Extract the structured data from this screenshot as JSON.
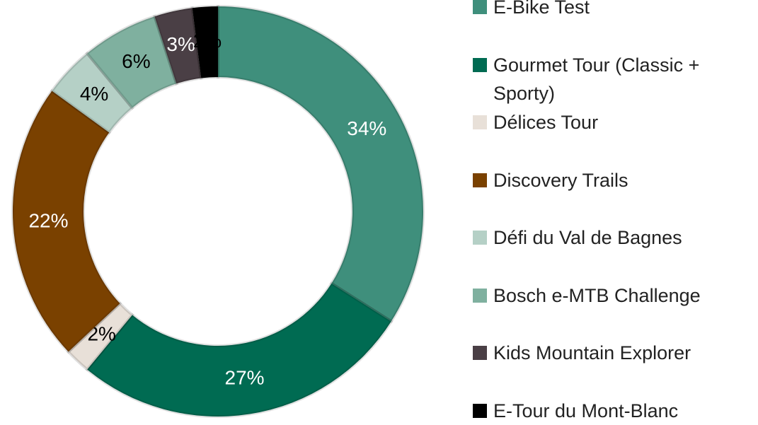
{
  "chart_data": {
    "type": "donut",
    "categories": [
      "E-Bike Test",
      "Gourmet Tour (Classic + Sporty)",
      "Délices Tour",
      "Discovery Trails",
      "Défi du Val de Bagnes",
      "Bosch e-MTB Challenge",
      "Kids Mountain Explorer",
      "E-Tour du Mont-Blanc"
    ],
    "values": [
      34,
      27,
      2,
      22,
      4,
      6,
      3,
      2
    ],
    "value_labels": [
      "34%",
      "27%",
      "2%",
      "22%",
      "4%",
      "6%",
      "3%",
      "2%"
    ],
    "colors": [
      "#3f8f7c",
      "#006b52",
      "#e8e0d8",
      "#7a4100",
      "#b5d0c6",
      "#7fb09f",
      "#4a3f45",
      "#000000"
    ],
    "legend": "right"
  }
}
